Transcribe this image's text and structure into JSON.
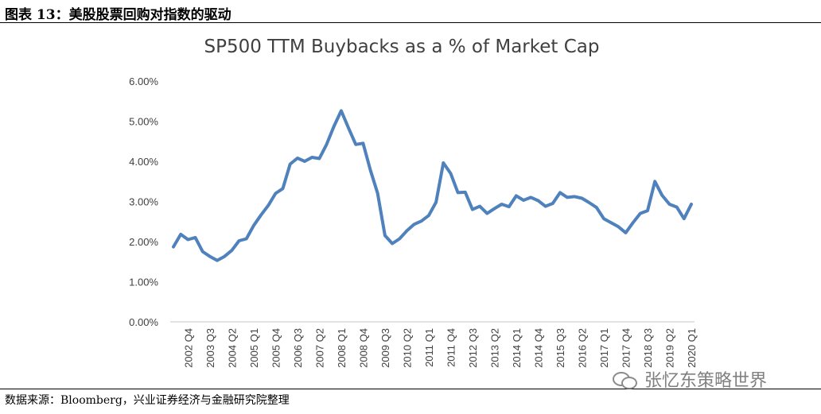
{
  "figure": {
    "title": "图表 13：美股股票回购对指数的驱动",
    "source": "数据来源：Bloomberg，兴业证券经济与金融研究院整理",
    "watermark": "张忆东策略世界",
    "watermark_icon": "wechat-icon"
  },
  "colors": {
    "line": "#4F81BD",
    "axis": "#D9D9D9",
    "text": "#404040"
  },
  "chart_data": {
    "type": "line",
    "title": "SP500 TTM Buybacks as a % of Market Cap",
    "xlabel": "",
    "ylabel": "",
    "ylim": [
      0,
      6
    ],
    "y_ticks": [
      "0.00%",
      "1.00%",
      "2.00%",
      "3.00%",
      "4.00%",
      "5.00%",
      "6.00%"
    ],
    "grid": false,
    "legend": "none",
    "x_tick_labels": [
      "2002 Q4",
      "2003 Q3",
      "2004 Q2",
      "2005 Q1",
      "2005 Q4",
      "2006 Q3",
      "2007 Q2",
      "2008 Q1",
      "2008 Q4",
      "2009 Q3",
      "2010 Q2",
      "2011 Q1",
      "2011 Q4",
      "2012 Q3",
      "2013 Q2",
      "2014 Q1",
      "2014 Q4",
      "2015 Q3",
      "2016 Q2",
      "2017 Q1",
      "2017 Q4",
      "2018 Q3",
      "2019 Q2",
      "2020 Q1"
    ],
    "series": [
      {
        "name": "SP500 TTM Buybacks as a % of Market Cap",
        "x": [
          "2002 Q2",
          "2002 Q3",
          "2002 Q4",
          "2003 Q1",
          "2003 Q2",
          "2003 Q3",
          "2003 Q4",
          "2004 Q1",
          "2004 Q2",
          "2004 Q3",
          "2004 Q4",
          "2005 Q1",
          "2005 Q2",
          "2005 Q3",
          "2005 Q4",
          "2006 Q1",
          "2006 Q2",
          "2006 Q3",
          "2006 Q4",
          "2007 Q1",
          "2007 Q2",
          "2007 Q3",
          "2007 Q4",
          "2008 Q1",
          "2008 Q2",
          "2008 Q3",
          "2008 Q4",
          "2009 Q1",
          "2009 Q2",
          "2009 Q3",
          "2009 Q4",
          "2010 Q1",
          "2010 Q2",
          "2010 Q3",
          "2010 Q4",
          "2011 Q1",
          "2011 Q2",
          "2011 Q3",
          "2011 Q4",
          "2012 Q1",
          "2012 Q2",
          "2012 Q3",
          "2012 Q4",
          "2013 Q1",
          "2013 Q2",
          "2013 Q3",
          "2013 Q4",
          "2014 Q1",
          "2014 Q2",
          "2014 Q3",
          "2014 Q4",
          "2015 Q1",
          "2015 Q2",
          "2015 Q3",
          "2015 Q4",
          "2016 Q1",
          "2016 Q2",
          "2016 Q3",
          "2016 Q4",
          "2017 Q1",
          "2017 Q2",
          "2017 Q3",
          "2017 Q4",
          "2018 Q1",
          "2018 Q2",
          "2018 Q3",
          "2018 Q4",
          "2019 Q1",
          "2019 Q2",
          "2019 Q3",
          "2019 Q4",
          "2020 Q1"
        ],
        "values": [
          1.87,
          2.18,
          2.05,
          2.1,
          1.75,
          1.63,
          1.53,
          1.63,
          1.78,
          2.02,
          2.07,
          2.4,
          2.66,
          2.9,
          3.2,
          3.32,
          3.93,
          4.08,
          4.0,
          4.1,
          4.07,
          4.42,
          4.87,
          5.26,
          4.83,
          4.42,
          4.45,
          3.78,
          3.2,
          2.15,
          1.95,
          2.07,
          2.27,
          2.43,
          2.51,
          2.65,
          2.98,
          3.96,
          3.7,
          3.22,
          3.23,
          2.8,
          2.88,
          2.7,
          2.82,
          2.93,
          2.87,
          3.14,
          3.03,
          3.1,
          3.02,
          2.88,
          2.95,
          3.22,
          3.1,
          3.12,
          3.08,
          2.97,
          2.85,
          2.57,
          2.47,
          2.37,
          2.22,
          2.47,
          2.7,
          2.77,
          3.5,
          3.15,
          2.93,
          2.86,
          2.57,
          2.93
        ]
      }
    ]
  }
}
